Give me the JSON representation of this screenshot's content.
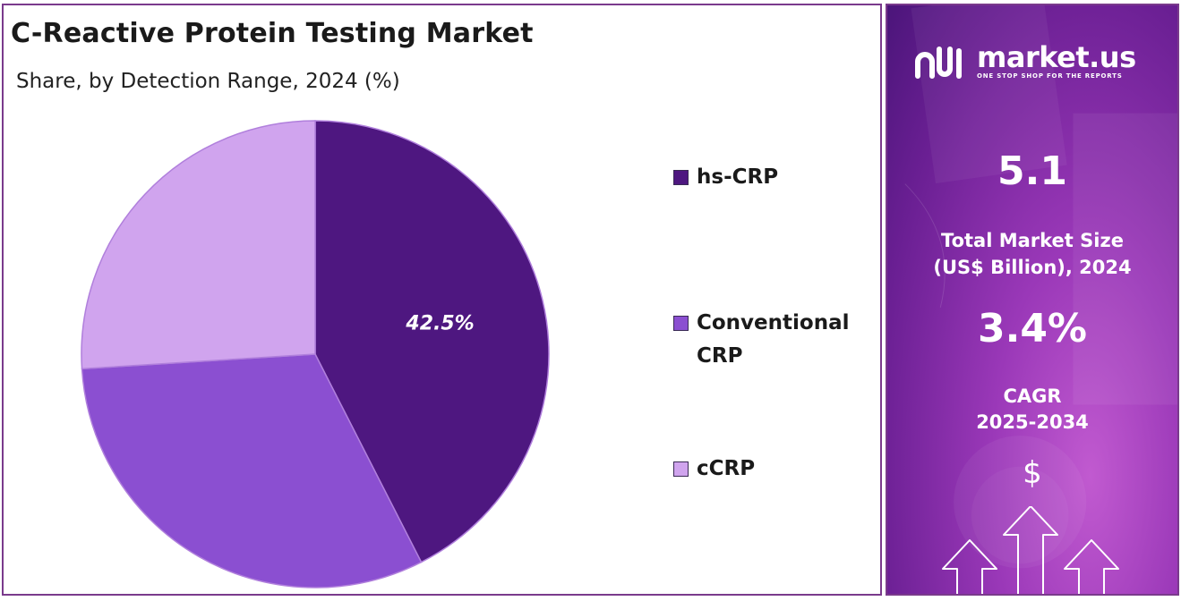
{
  "title": "C-Reactive Protein Testing Market",
  "subtitle": "Share, by Detection Range, 2024 (%)",
  "chart_data": {
    "type": "pie",
    "title": "C-Reactive Protein Testing Market",
    "subtitle": "Share, by Detection Range, 2024 (%)",
    "slices": [
      {
        "name": "hs-CRP",
        "value": 42.5,
        "color": "#4e1780",
        "label": "42.5%"
      },
      {
        "name": "Conventional CRP",
        "value": 31.5,
        "color": "#8b4fd1",
        "label": ""
      },
      {
        "name": "cCRP",
        "value": 26.0,
        "color": "#d0a4ee",
        "label": ""
      }
    ],
    "start_angle_deg": 0,
    "direction": "clockwise",
    "legend": "right"
  },
  "legend": [
    {
      "label": "hs-CRP",
      "color": "#4e1780"
    },
    {
      "label": "Conventional CRP",
      "color": "#8b4fd1"
    },
    {
      "label": "cCRP",
      "color": "#d0a4ee"
    }
  ],
  "brand": {
    "name": "market.us",
    "tagline": "ONE STOP SHOP FOR THE REPORTS"
  },
  "stats": {
    "market_size_value": "5.1",
    "market_size_label_line1": "Total Market Size",
    "market_size_label_line2": "(US$ Billion), 2024",
    "cagr_value": "3.4%",
    "cagr_label_line1": "CAGR",
    "cagr_label_line2": "2025-2034"
  },
  "icons": {
    "currency": "$",
    "arrows": "up-arrows-icon",
    "logo": "market-us-logo-icon"
  }
}
